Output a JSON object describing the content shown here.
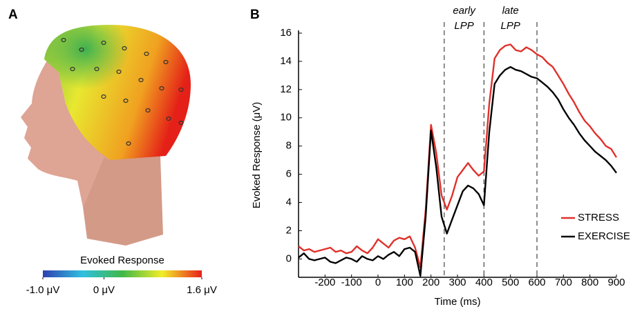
{
  "chart_data": [
    {
      "type": "topomap",
      "panel": "A",
      "colorbar": {
        "title": "Evoked Response",
        "clim": [
          -1.0,
          1.6
        ],
        "colormap": [
          "#2f3fb0",
          "#2fc0e0",
          "#3fb848",
          "#f2ee28",
          "#e8201c"
        ],
        "ticks": [
          {
            "value": -1.0,
            "label": "-1.0 μV"
          },
          {
            "value": 0,
            "label": "0 μV"
          },
          {
            "value": 1.6,
            "label": "1.6 μV"
          }
        ]
      }
    },
    {
      "type": "line",
      "panel": "B",
      "xlabel": "Time (ms)",
      "ylabel": "Evoked Response  (μV)",
      "x": [
        -300,
        -280,
        -260,
        -240,
        -220,
        -200,
        -180,
        -160,
        -140,
        -120,
        -100,
        -80,
        -60,
        -40,
        -20,
        0,
        20,
        40,
        60,
        80,
        100,
        120,
        140,
        160,
        180,
        200,
        220,
        240,
        260,
        280,
        300,
        320,
        340,
        360,
        380,
        400,
        420,
        440,
        460,
        480,
        500,
        520,
        540,
        560,
        580,
        600,
        620,
        640,
        660,
        680,
        700,
        720,
        740,
        760,
        780,
        800,
        820,
        840,
        860,
        880,
        900
      ],
      "series": [
        {
          "name": "STRESS",
          "color": "#e0302a",
          "values": [
            0.9,
            0.6,
            0.7,
            0.5,
            0.6,
            0.7,
            0.8,
            0.5,
            0.6,
            0.4,
            0.5,
            0.9,
            0.6,
            0.4,
            0.8,
            1.4,
            1.1,
            0.8,
            1.3,
            1.5,
            1.4,
            1.6,
            0.8,
            -0.6,
            3.5,
            9.5,
            7.5,
            4.5,
            3.5,
            4.5,
            5.8,
            6.3,
            6.8,
            6.3,
            5.9,
            6.2,
            11,
            14.2,
            14.8,
            15.1,
            15.2,
            14.8,
            14.7,
            15.0,
            14.8,
            14.5,
            14.3,
            13.9,
            13.6,
            13.0,
            12.4,
            11.7,
            11.1,
            10.4,
            9.8,
            9.4,
            8.9,
            8.5,
            8.0,
            7.8,
            7.2
          ]
        },
        {
          "name": "EXERCISE",
          "color": "#000000",
          "values": [
            0.1,
            0.4,
            0.0,
            -0.1,
            0.0,
            0.1,
            -0.2,
            -0.3,
            -0.1,
            0.1,
            0.0,
            -0.2,
            0.2,
            0.0,
            -0.1,
            0.2,
            0.0,
            0.3,
            0.5,
            0.2,
            0.7,
            0.8,
            0.5,
            -1.2,
            3.0,
            9.1,
            6.5,
            3.0,
            1.8,
            2.8,
            3.8,
            4.8,
            5.2,
            5.0,
            4.6,
            3.8,
            9,
            12.4,
            13.0,
            13.4,
            13.6,
            13.4,
            13.3,
            13.1,
            12.9,
            12.8,
            12.5,
            12.2,
            11.8,
            11.3,
            10.6,
            10.0,
            9.5,
            8.9,
            8.4,
            8.0,
            7.6,
            7.3,
            7.0,
            6.6,
            6.1
          ]
        }
      ],
      "xlim": [
        -300,
        900
      ],
      "xticks": [
        -200,
        -100,
        0,
        100,
        200,
        300,
        400,
        500,
        600,
        700,
        800,
        900
      ],
      "ylim": [
        -1.3,
        16
      ],
      "yticks": [
        0,
        2,
        4,
        6,
        8,
        10,
        12,
        14,
        16
      ],
      "vlines": [
        250,
        400,
        600
      ],
      "annotations": [
        [
          "early",
          "LPP"
        ],
        [
          "late",
          "LPP"
        ]
      ],
      "legend": "lower right"
    }
  ]
}
